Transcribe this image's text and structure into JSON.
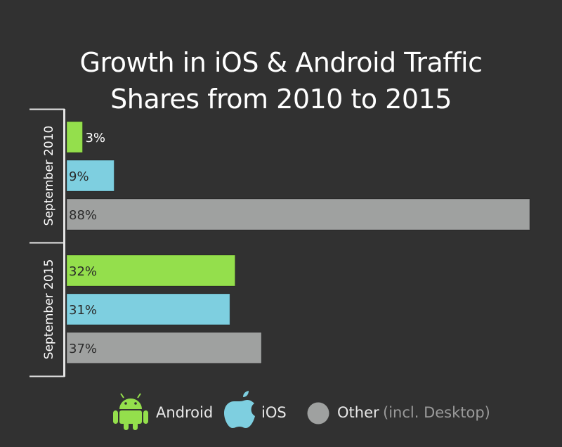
{
  "chart_data": {
    "type": "bar",
    "orientation": "horizontal",
    "title": "Growth in iOS & Android Traffic Shares from 2010 to 2015",
    "title_lines": [
      "Growth in iOS & Android Traffic",
      "Shares from 2010 to 2015"
    ],
    "groups": [
      {
        "label": "September 2010",
        "bars": [
          {
            "series": "Android",
            "value": 3,
            "label": "3%"
          },
          {
            "series": "iOS",
            "value": 9,
            "label": "9%"
          },
          {
            "series": "Other",
            "value": 88,
            "label": "88%"
          }
        ]
      },
      {
        "label": "September 2015",
        "bars": [
          {
            "series": "Android",
            "value": 32,
            "label": "32%"
          },
          {
            "series": "iOS",
            "value": 31,
            "label": "31%"
          },
          {
            "series": "Other",
            "value": 37,
            "label": "37%"
          }
        ]
      }
    ],
    "xlim": [
      0,
      88
    ],
    "grid": false,
    "legend_position": "bottom",
    "legend": [
      {
        "name": "Android",
        "icon": "android-icon",
        "color": "#94df4c"
      },
      {
        "name": "iOS",
        "icon": "apple-icon",
        "color": "#7ecfe0"
      },
      {
        "name": "Other",
        "sub": "(incl. Desktop)",
        "icon": "circle-icon",
        "color": "#9fa1a0"
      }
    ]
  },
  "colors": {
    "background": "#313131",
    "Android": "#94df4c",
    "iOS": "#7ecfe0",
    "Other": "#9fa1a0",
    "axis": "#e6e6e6"
  }
}
